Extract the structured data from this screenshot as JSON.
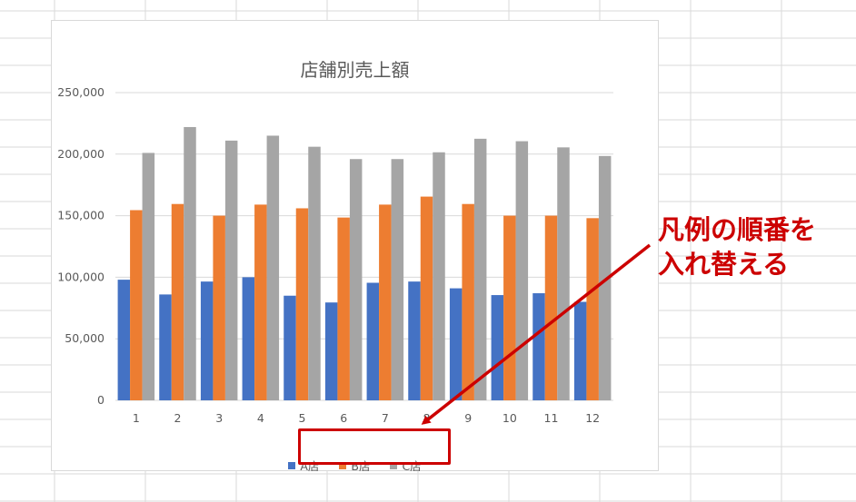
{
  "chart_data": {
    "type": "bar",
    "title": "店舗別売上額",
    "categories": [
      "1",
      "2",
      "3",
      "4",
      "5",
      "6",
      "7",
      "8",
      "9",
      "10",
      "11",
      "12"
    ],
    "series": [
      {
        "name": "A店",
        "color": "#4472c4",
        "values": [
          98000,
          86000,
          96500,
          100000,
          85000,
          79500,
          95500,
          96500,
          91000,
          85500,
          87000,
          80000
        ]
      },
      {
        "name": "B店",
        "color": "#ed7d31",
        "values": [
          154500,
          159500,
          150000,
          159000,
          156000,
          148500,
          159000,
          165500,
          159500,
          150000,
          150000,
          148000
        ]
      },
      {
        "name": "C店",
        "color": "#a5a5a5",
        "values": [
          201000,
          222000,
          211000,
          215000,
          206000,
          196000,
          196000,
          201500,
          212500,
          210500,
          205500,
          198500
        ]
      }
    ],
    "ylim": [
      0,
      250000
    ],
    "yticks": [
      "0",
      "50,000",
      "100,000",
      "150,000",
      "200,000",
      "250,000"
    ],
    "grid": true,
    "legend_position": "bottom"
  },
  "annotation": {
    "line1": "凡例の順番を",
    "line2": "入れ替える",
    "color": "#cc0000"
  }
}
